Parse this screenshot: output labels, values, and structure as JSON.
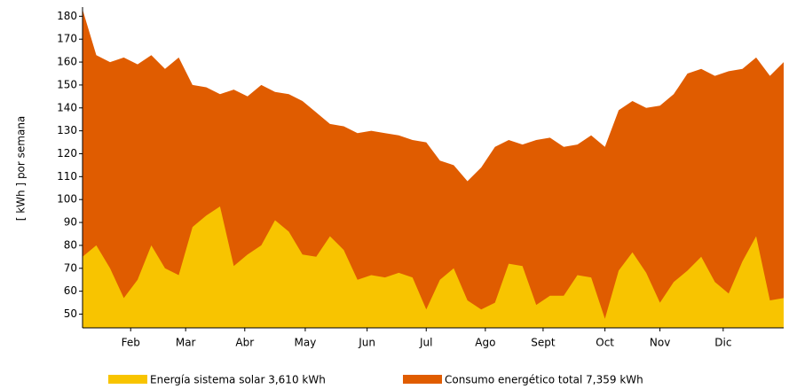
{
  "chart_data": {
    "type": "area",
    "y_label": "[ kWh ] por semana",
    "x": [
      0,
      1,
      2,
      3,
      4,
      5,
      6,
      7,
      8,
      9,
      10,
      11,
      12,
      13,
      14,
      15,
      16,
      17,
      18,
      19,
      20,
      21,
      22,
      23,
      24,
      25,
      26,
      27,
      28,
      29,
      30,
      31,
      32,
      33,
      34,
      35,
      36,
      37,
      38,
      39,
      40,
      41,
      42,
      43,
      44,
      45,
      46,
      47,
      48,
      49,
      50,
      51
    ],
    "xlim": [
      0,
      51
    ],
    "xticks": [
      {
        "value": 3.5,
        "label": "Feb"
      },
      {
        "value": 7.5,
        "label": "Mar"
      },
      {
        "value": 11.8,
        "label": "Abr"
      },
      {
        "value": 16.2,
        "label": "May"
      },
      {
        "value": 20.7,
        "label": "Jun"
      },
      {
        "value": 25,
        "label": "Jul"
      },
      {
        "value": 29.3,
        "label": "Ago"
      },
      {
        "value": 33.5,
        "label": "Sept"
      },
      {
        "value": 38,
        "label": "Oct"
      },
      {
        "value": 42,
        "label": "Nov"
      },
      {
        "value": 46.6,
        "label": "Dic"
      }
    ],
    "ylim": [
      44,
      184
    ],
    "yticks": [
      50,
      60,
      70,
      80,
      90,
      100,
      110,
      120,
      130,
      140,
      150,
      160,
      170,
      180
    ],
    "series": [
      {
        "name": "Consumo energético total 7,359 kWh",
        "color": "#e05c00",
        "values": [
          183,
          163,
          160,
          162,
          159,
          163,
          157,
          162,
          150,
          149,
          146,
          148,
          145,
          150,
          147,
          146,
          143,
          138,
          133,
          132,
          129,
          130,
          129,
          128,
          126,
          125,
          117,
          115,
          108,
          114,
          123,
          126,
          124,
          126,
          127,
          123,
          124,
          128,
          123,
          139,
          143,
          140,
          141,
          146,
          155,
          157,
          154,
          156,
          157,
          162,
          154,
          160
        ]
      },
      {
        "name": "Energía sistema solar  3,610 kWh",
        "color": "#f8c400",
        "values": [
          75,
          80,
          70,
          57,
          65,
          80,
          70,
          67,
          88,
          93,
          97,
          71,
          76,
          80,
          91,
          86,
          76,
          75,
          84,
          78,
          65,
          67,
          66,
          68,
          66,
          52,
          65,
          70,
          56,
          52,
          55,
          72,
          71,
          54,
          58,
          58,
          67,
          66,
          48,
          69,
          77,
          68,
          55,
          64,
          69,
          75,
          64,
          59,
          73,
          84,
          56,
          57
        ]
      }
    ]
  }
}
